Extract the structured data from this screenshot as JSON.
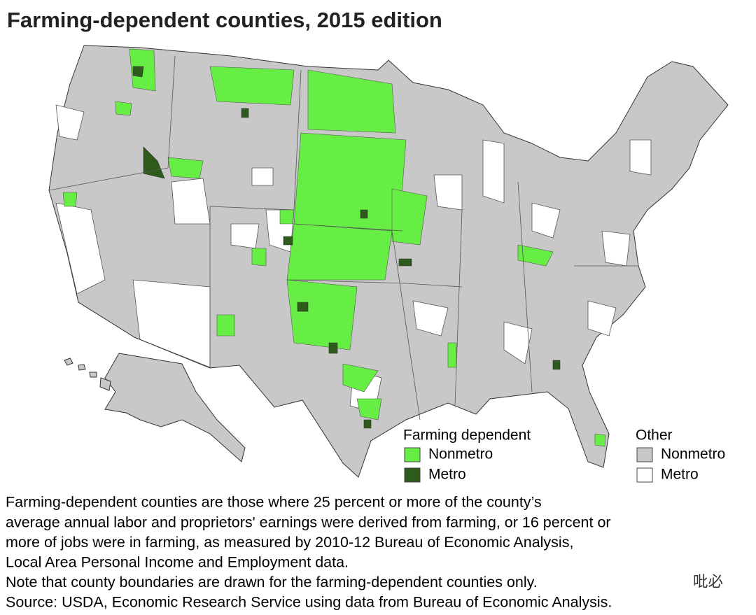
{
  "title": "Farming-dependent counties, 2015 edition",
  "legend": {
    "groups": [
      {
        "title": "Farming dependent",
        "items": [
          {
            "label": "Nonmetro",
            "color": "#66ee44"
          },
          {
            "label": "Metro",
            "color": "#2e5a1c"
          }
        ]
      },
      {
        "title": "Other",
        "items": [
          {
            "label": "Nonmetro",
            "color": "#c8c8c8"
          },
          {
            "label": "Metro",
            "color": "#ffffff"
          }
        ]
      }
    ]
  },
  "notes": [
    "Farming-dependent counties are those where 25 percent or more of the county’s",
    "average annual labor and proprietors' earnings were derived from farming, or 16 percent or",
    "more of jobs were in farming, as measured by 2010-12 Bureau of Economic Analysis,",
    "Local Area Personal Income and Employment data.",
    "Note that county boundaries are drawn for the farming-dependent counties only.",
    "Source: USDA, Economic Research Service using data from Bureau of Economic Analysis."
  ],
  "watermark": "吡必"
}
